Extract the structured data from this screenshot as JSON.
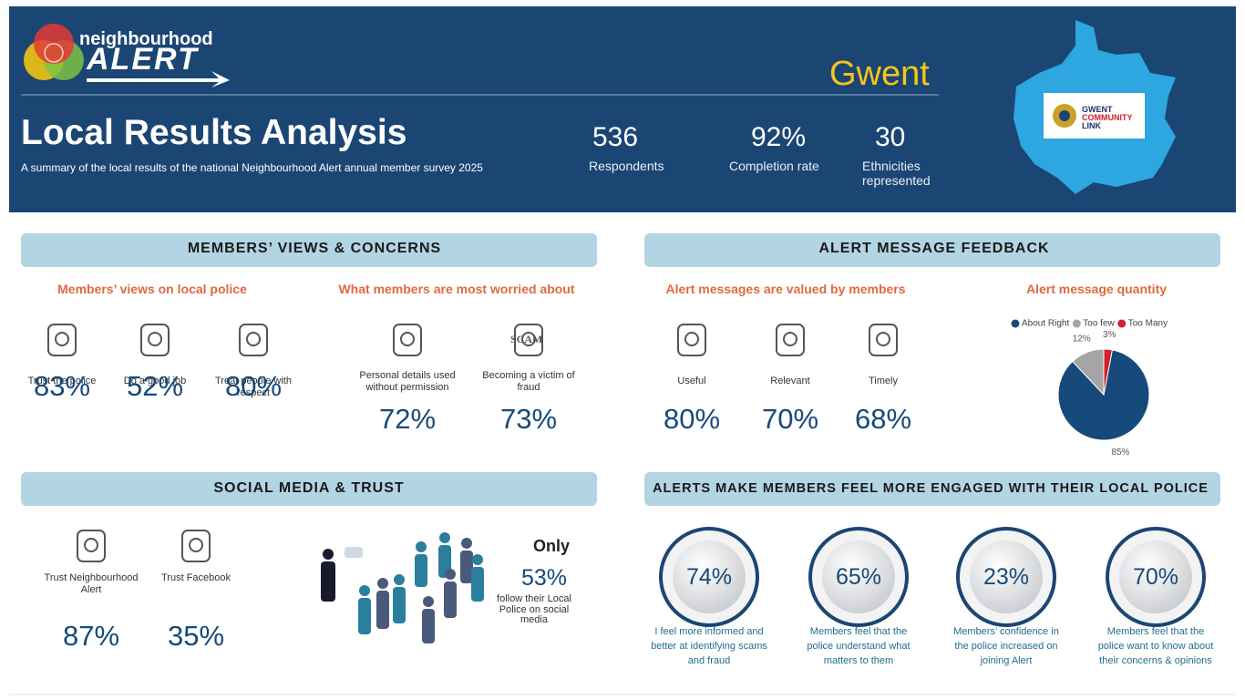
{
  "header": {
    "logo_line1": "neighbourhood",
    "logo_line2": "ALERT",
    "region": "Gwent",
    "title": "Local Results Analysis",
    "subtitle": "A summary of the local results of the national Neighbourhood Alert annual member survey 2025",
    "stats": [
      {
        "value": "536",
        "label": "Respondents"
      },
      {
        "value": "92%",
        "label": "Completion rate"
      },
      {
        "value": "30",
        "label": "Ethnicities represented"
      }
    ],
    "partner_logo": [
      "GWENT",
      "COMMUNITY",
      "LINK"
    ]
  },
  "members_views": {
    "title": "MEMBERS’ VIEWS & CONCERNS",
    "police": {
      "heading": "Members’ views on local police",
      "items": [
        {
          "label": "Trust the police",
          "value": "83%"
        },
        {
          "label": "Do a good job",
          "value": "52%"
        },
        {
          "label": "Treat people with respect",
          "value": "80%"
        }
      ]
    },
    "worries": {
      "heading": "What members are most worried about",
      "items": [
        {
          "label": "Personal details used without permission",
          "value": "72%"
        },
        {
          "label": "Becoming a victim of fraud",
          "value": "73%"
        }
      ],
      "icon_text": "SCAM"
    }
  },
  "alert_feedback": {
    "title": "ALERT MESSAGE FEEDBACK",
    "valued": {
      "heading": "Alert messages are valued by members",
      "items": [
        {
          "label": "Useful",
          "value": "80%"
        },
        {
          "label": "Relevant",
          "value": "70%"
        },
        {
          "label": "Timely",
          "value": "68%"
        }
      ]
    },
    "quantity": {
      "heading": "Alert message quantity",
      "chart_data": {
        "type": "pie",
        "categories": [
          "About Right",
          "Too few",
          "Too Many"
        ],
        "values": [
          85,
          12,
          3
        ],
        "value_labels": [
          "85%",
          "12%",
          "3%"
        ],
        "colors": [
          "#164a7a",
          "#a5a5a5",
          "#d0202e"
        ],
        "legend": "top"
      }
    }
  },
  "social_media": {
    "title": "SOCIAL MEDIA & TRUST",
    "items": [
      {
        "label": "Trust Neighbourhood Alert",
        "value": "87%"
      },
      {
        "label": "Trust Facebook",
        "value": "35%"
      }
    ],
    "follow": {
      "prefix": "Only",
      "value": "53%",
      "text": "follow their Local Police on social media"
    }
  },
  "engagement": {
    "title": "ALERTS MAKE MEMBERS FEEL MORE ENGAGED WITH THEIR LOCAL POLICE",
    "items": [
      {
        "value": "74%",
        "text": "I feel more informed and better at identifying scams and fraud"
      },
      {
        "value": "65%",
        "text": "Members feel that the police understand what matters to them"
      },
      {
        "value": "23%",
        "text": "Members’ confidence in the police increased on joining Alert"
      },
      {
        "value": "70%",
        "text": "Members feel that the police want to know about their concerns & opinions"
      }
    ]
  }
}
